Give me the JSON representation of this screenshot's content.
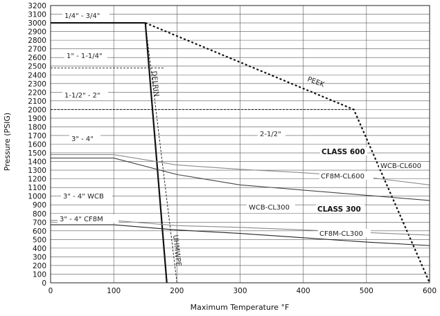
{
  "chart_data": {
    "type": "line",
    "title": "",
    "xlabel": "Maximum Temperature °F",
    "ylabel": "Pressure (PSIG)",
    "xlim": [
      0,
      600
    ],
    "ylim": [
      0,
      3200
    ],
    "x_ticks": [
      0,
      100,
      200,
      300,
      400,
      500,
      600
    ],
    "y_ticks": [
      0,
      100,
      200,
      300,
      400,
      500,
      600,
      700,
      800,
      900,
      1000,
      1100,
      1200,
      1300,
      1400,
      1500,
      1600,
      1700,
      1800,
      1900,
      2000,
      2100,
      2200,
      2300,
      2400,
      2500,
      2600,
      2700,
      2800,
      2900,
      3000,
      3100,
      3200
    ],
    "grid": true,
    "series": [
      {
        "name": "1/4\" - 3/4\"",
        "style": "solid-thick",
        "color": "#111111",
        "points": [
          [
            0,
            3000
          ],
          [
            150,
            3000
          ]
        ]
      },
      {
        "name": "PEEK",
        "style": "dotted-thick",
        "color": "#111111",
        "points": [
          [
            150,
            3000
          ],
          [
            480,
            2000
          ],
          [
            600,
            0
          ]
        ]
      },
      {
        "name": "DELRIN",
        "style": "solid-thick",
        "color": "#111111",
        "points": [
          [
            150,
            3000
          ],
          [
            184,
            0
          ]
        ]
      },
      {
        "name": "UHMWPE",
        "style": "dashed-thin",
        "color": "#111111",
        "points": [
          [
            150,
            3000
          ],
          [
            200,
            0
          ]
        ]
      },
      {
        "name": "1\" - 1-1/4\"",
        "style": "dashed-thin",
        "color": "#111111",
        "points": [
          [
            0,
            2480
          ],
          [
            180,
            2480
          ]
        ]
      },
      {
        "name": "1-1/2\" - 2\"",
        "style": "dashed-thin",
        "color": "#111111",
        "points": [
          [
            0,
            2000
          ],
          [
            480,
            2000
          ]
        ]
      },
      {
        "name": "WCB-CL600",
        "style": "solid",
        "color": "#8a8a8a",
        "points": [
          [
            0,
            1480
          ],
          [
            100,
            1480
          ],
          [
            200,
            1360
          ],
          [
            300,
            1310
          ],
          [
            400,
            1270
          ],
          [
            500,
            1220
          ],
          [
            600,
            1130
          ]
        ]
      },
      {
        "name": "3\" - 4\"",
        "style": "solid",
        "color": "#444444",
        "points": [
          [
            0,
            1440
          ],
          [
            100,
            1440
          ]
        ]
      },
      {
        "name": "CF8M-CL600",
        "style": "solid",
        "color": "#444444",
        "points": [
          [
            100,
            1440
          ],
          [
            200,
            1250
          ],
          [
            300,
            1130
          ],
          [
            400,
            1070
          ],
          [
            500,
            1010
          ],
          [
            600,
            950
          ]
        ]
      },
      {
        "name": "WCB-CL300",
        "style": "solid",
        "color": "#8a8a8a",
        "points": [
          [
            0,
            720
          ],
          [
            100,
            720
          ],
          [
            200,
            660
          ],
          [
            300,
            640
          ],
          [
            400,
            610
          ],
          [
            500,
            580
          ],
          [
            600,
            550
          ]
        ]
      },
      {
        "name": "CF8M-CL300",
        "style": "solid",
        "color": "#222222",
        "points": [
          [
            0,
            670
          ],
          [
            100,
            670
          ],
          [
            200,
            610
          ],
          [
            300,
            570
          ],
          [
            400,
            520
          ],
          [
            500,
            470
          ],
          [
            600,
            430
          ]
        ]
      }
    ],
    "annotations": {
      "quarter_three_quarter": "1/4\" - 3/4\"",
      "one_one_quarter": "1\" - 1-1/4\"",
      "one_half_two": "1-1/2\" - 2\"",
      "three_four": "3\" - 4\"",
      "two_half": "2-1/2\"",
      "class600": "CLASS 600",
      "class300": "CLASS 300",
      "wcb_cl600": "WCB-CL600",
      "cf8m_cl600": "CF8M-CL600",
      "wcb_cl300": "WCB-CL300",
      "cf8m_cl300": "CF8M-CL300",
      "three_four_wcb": "3\" - 4\" WCB",
      "three_four_cf8m": "3\" - 4\" CF8M",
      "peek": "PEEK",
      "delrin": "DELRIN",
      "uhmwpe": "UHMWPE"
    }
  }
}
